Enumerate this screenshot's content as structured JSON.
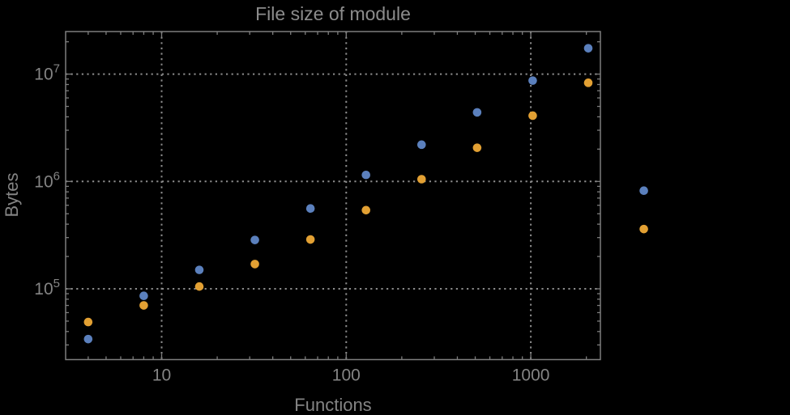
{
  "chart_data": {
    "type": "scatter",
    "title": "File size of module",
    "xlabel": "Functions",
    "ylabel": "Bytes",
    "x_scale": "log",
    "y_scale": "log",
    "xlim": [
      3.05,
      2380
    ],
    "ylim": [
      22000,
      25000000
    ],
    "grid": "dotted lines at major ticks only",
    "legend": "none",
    "x_ticks": [
      {
        "value": 10,
        "label": "10"
      },
      {
        "value": 100,
        "label": "100"
      },
      {
        "value": 1000,
        "label": "1000"
      }
    ],
    "y_ticks": [
      {
        "value": 100000,
        "base": "10",
        "exp": "5"
      },
      {
        "value": 1000000,
        "base": "10",
        "exp": "6"
      },
      {
        "value": 10000000,
        "base": "10",
        "exp": "7"
      }
    ],
    "x": [
      4,
      8,
      16,
      32,
      64,
      128,
      256,
      512,
      1024,
      2048,
      4096
    ],
    "series": [
      {
        "name": "blue-series",
        "color": "#5b80bd",
        "values": [
          34000,
          86000,
          150000,
          285000,
          560000,
          1150000,
          2200000,
          4400000,
          8700000,
          17400000,
          820000
        ]
      },
      {
        "name": "orange-series",
        "color": "#e2a033",
        "values": [
          49000,
          70000,
          105000,
          170000,
          288000,
          540000,
          1050000,
          2060000,
          4100000,
          8300000,
          360000
        ]
      }
    ]
  },
  "style": {
    "background_color": "#000000",
    "frame_color": "#7e7e7e",
    "grid_color": "#8c8c8c",
    "tick_label_color": "#848484",
    "axis_label_color": "#848484",
    "title_color": "#8c8c8c"
  }
}
